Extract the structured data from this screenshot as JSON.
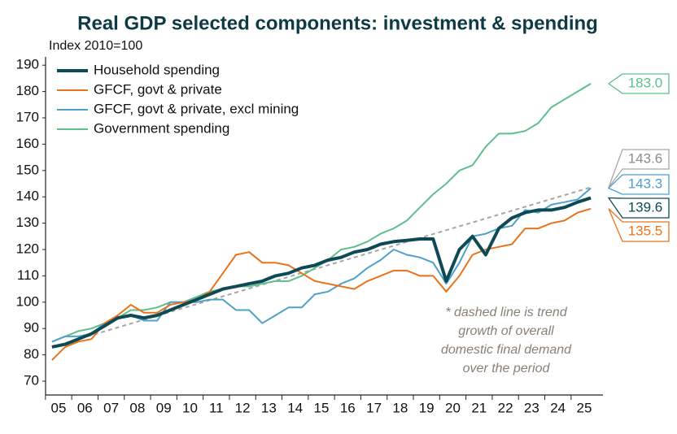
{
  "chart_data": {
    "type": "line",
    "title": "Real GDP selected components: investment & spending",
    "y_label": "Index 2010=100",
    "x": [
      2005.25,
      2005.75,
      2006.25,
      2006.75,
      2007.25,
      2007.75,
      2008.25,
      2008.75,
      2009.25,
      2009.75,
      2010.25,
      2010.75,
      2011.25,
      2011.75,
      2012.25,
      2012.75,
      2013.25,
      2013.75,
      2014.25,
      2014.75,
      2015.25,
      2015.75,
      2016.25,
      2016.75,
      2017.25,
      2017.75,
      2018.25,
      2018.75,
      2019.25,
      2019.75,
      2020.25,
      2020.75,
      2021.25,
      2021.75,
      2022.25,
      2022.75,
      2023.25,
      2023.75,
      2024.25,
      2024.75,
      2025.25,
      2025.75
    ],
    "xlim": [
      2005,
      2026.2
    ],
    "xticks": [
      {
        "value": 2005.5,
        "label": "05"
      },
      {
        "value": 2006.5,
        "label": "06"
      },
      {
        "value": 2007.5,
        "label": "07"
      },
      {
        "value": 2008.5,
        "label": "08"
      },
      {
        "value": 2009.5,
        "label": "09"
      },
      {
        "value": 2010.5,
        "label": "10"
      },
      {
        "value": 2011.5,
        "label": "11"
      },
      {
        "value": 2012.5,
        "label": "12"
      },
      {
        "value": 2013.5,
        "label": "13"
      },
      {
        "value": 2014.5,
        "label": "14"
      },
      {
        "value": 2015.5,
        "label": "15"
      },
      {
        "value": 2016.5,
        "label": "16"
      },
      {
        "value": 2017.5,
        "label": "17"
      },
      {
        "value": 2018.5,
        "label": "18"
      },
      {
        "value": 2019.5,
        "label": "19"
      },
      {
        "value": 2020.5,
        "label": "20"
      },
      {
        "value": 2021.5,
        "label": "21"
      },
      {
        "value": 2022.5,
        "label": "22"
      },
      {
        "value": 2023.5,
        "label": "23"
      },
      {
        "value": 2024.5,
        "label": "24"
      },
      {
        "value": 2025.5,
        "label": "25"
      }
    ],
    "ylim": [
      70,
      190
    ],
    "yticks": [
      70,
      80,
      90,
      100,
      110,
      120,
      130,
      140,
      150,
      160,
      170,
      180,
      190
    ],
    "series": [
      {
        "name": "Household spending",
        "color": "#0e4a55",
        "width": 4,
        "values": [
          83,
          84,
          86,
          88,
          91,
          94,
          95,
          94,
          95,
          97,
          99,
          101,
          103,
          105,
          106,
          107,
          108,
          110,
          111,
          113,
          114,
          116,
          117,
          119,
          120,
          122,
          123,
          123.5,
          124,
          124,
          108,
          120,
          125,
          118,
          128,
          132,
          134,
          135,
          135,
          136,
          138,
          139.6
        ]
      },
      {
        "name": "GFCF, govt & private",
        "color": "#e8731c",
        "width": 2,
        "values": [
          78,
          83,
          85,
          86,
          92,
          95,
          99,
          96,
          96,
          99,
          100,
          101,
          104,
          111,
          118,
          119,
          115,
          115,
          114,
          111,
          108,
          107,
          106,
          105,
          108,
          110,
          112,
          112,
          110,
          110,
          104,
          110,
          118,
          120,
          121,
          122,
          128,
          128,
          130,
          131,
          134,
          135.5
        ]
      },
      {
        "name": "GFCF, govt & private, excl mining",
        "color": "#4fa0c9",
        "width": 2,
        "values": [
          85,
          87,
          87,
          88,
          92,
          94,
          95,
          93,
          93,
          100,
          100,
          100,
          101,
          101,
          97,
          97,
          92,
          95,
          98,
          98,
          103,
          104,
          107,
          109,
          113,
          116,
          120,
          118,
          117,
          115,
          107,
          115,
          125,
          126,
          128,
          129,
          135,
          134,
          137,
          138,
          139,
          143.3
        ]
      },
      {
        "name": "Government spending",
        "color": "#5dbf8a",
        "width": 2,
        "values": [
          85,
          87,
          89,
          90,
          92,
          94,
          97,
          97,
          98,
          100,
          100,
          102,
          104,
          105,
          106,
          106,
          107,
          108,
          108,
          110,
          113,
          116,
          120,
          121,
          123,
          126,
          128,
          131,
          136,
          141,
          145,
          150,
          152,
          159,
          164,
          164,
          165,
          168,
          174,
          177,
          180,
          183
        ],
        "value_labels": [
          null,
          null,
          null,
          null,
          null,
          null,
          null,
          null,
          null,
          null,
          null,
          null,
          null,
          null,
          null,
          null,
          null,
          null,
          null,
          null,
          null,
          null,
          null,
          null,
          null,
          null,
          null,
          null,
          null,
          null,
          null,
          null,
          null,
          null,
          null,
          null,
          null,
          null,
          null,
          null,
          null,
          "183.0"
        ]
      }
    ],
    "trend": {
      "x": [
        2005.25,
        2025.75
      ],
      "values": [
        83,
        143.6
      ],
      "color": "#a6a6a6",
      "dashed": true
    },
    "annotation": [
      "* dashed line is trend",
      "growth of overall",
      "domestic final demand",
      "over the period"
    ]
  }
}
